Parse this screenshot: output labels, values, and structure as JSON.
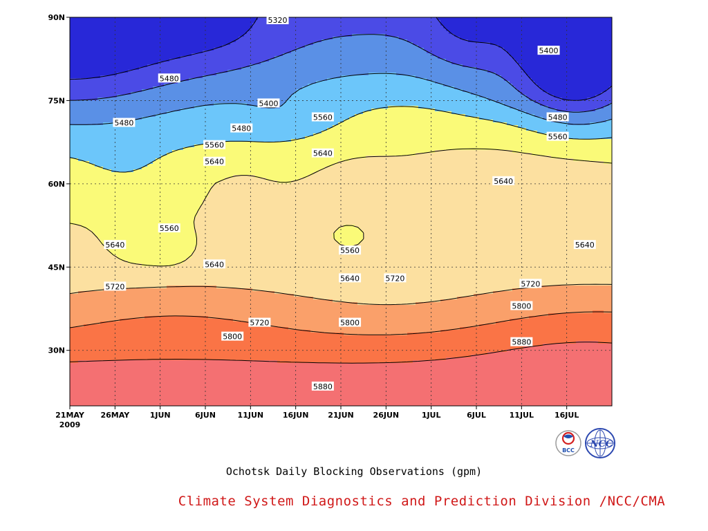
{
  "chart_data": {
    "type": "heatmap",
    "title": "Ochotsk Daily Blocking Observations (gpm)",
    "credit": "Climate System Diagnostics and Prediction Division /NCC/CMA",
    "x_ticks": [
      "21MAY",
      "26MAY",
      "1JUN",
      "6JUN",
      "11JUN",
      "16JUN",
      "21JUN",
      "26JUN",
      "1JUL",
      "6JUL",
      "11JUL",
      "16JUL"
    ],
    "x_year": "2009",
    "x_range": [
      "2009-05-21",
      "2009-07-20"
    ],
    "y_ticks": [
      "30N",
      "45N",
      "60N",
      "75N",
      "90N"
    ],
    "ylim": [
      20,
      90
    ],
    "contour_interval": 80,
    "grid": "dotted",
    "contour_labels": [
      {
        "date": "2009-06-13",
        "lat": 89.5,
        "value": "5320"
      },
      {
        "date": "2009-06-01",
        "lat": 79,
        "value": "5480"
      },
      {
        "date": "2009-05-27",
        "lat": 71,
        "value": "5480"
      },
      {
        "date": "2009-06-12",
        "lat": 74.5,
        "value": "5400"
      },
      {
        "date": "2009-06-09",
        "lat": 70,
        "value": "5480"
      },
      {
        "date": "2009-06-06",
        "lat": 67,
        "value": "5560"
      },
      {
        "date": "2009-06-18",
        "lat": 72,
        "value": "5560"
      },
      {
        "date": "2009-06-06",
        "lat": 64,
        "value": "5640"
      },
      {
        "date": "2009-06-18",
        "lat": 65.5,
        "value": "5640"
      },
      {
        "date": "2009-07-13",
        "lat": 84,
        "value": "5400"
      },
      {
        "date": "2009-07-14",
        "lat": 72,
        "value": "5480"
      },
      {
        "date": "2009-07-14",
        "lat": 68.5,
        "value": "5560"
      },
      {
        "date": "2009-07-08",
        "lat": 60.5,
        "value": "5640"
      },
      {
        "date": "2009-06-01",
        "lat": 52,
        "value": "5560"
      },
      {
        "date": "2009-05-26",
        "lat": 49,
        "value": "5640"
      },
      {
        "date": "2009-06-21",
        "lat": 48,
        "value": "5560"
      },
      {
        "date": "2009-06-06",
        "lat": 45.5,
        "value": "5640"
      },
      {
        "date": "2009-07-17",
        "lat": 49,
        "value": "5640"
      },
      {
        "date": "2009-06-21",
        "lat": 43,
        "value": "5640"
      },
      {
        "date": "2009-06-26",
        "lat": 43,
        "value": "5720"
      },
      {
        "date": "2009-05-26",
        "lat": 41.5,
        "value": "5720"
      },
      {
        "date": "2009-07-11",
        "lat": 42,
        "value": "5720"
      },
      {
        "date": "2009-06-11",
        "lat": 35,
        "value": "5720"
      },
      {
        "date": "2009-07-10",
        "lat": 38,
        "value": "5800"
      },
      {
        "date": "2009-06-21",
        "lat": 35,
        "value": "5800"
      },
      {
        "date": "2009-06-08",
        "lat": 32.5,
        "value": "5800"
      },
      {
        "date": "2009-07-10",
        "lat": 31.5,
        "value": "5880"
      },
      {
        "date": "2009-06-18",
        "lat": 23.5,
        "value": "5880"
      }
    ],
    "colors": {
      "lt_5320": "#2828d8",
      "5320_5400": "#4b4be6",
      "5400_5480": "#5a90e6",
      "5480_5560": "#6cc6fa",
      "5560_5640": "#fafa78",
      "5640_5720": "#fce0a0",
      "5720_5800": "#faa06a",
      "5800_5880": "#fa7446",
      "5880_5960": "#f47072",
      "gt_5960": "#f03848"
    }
  }
}
